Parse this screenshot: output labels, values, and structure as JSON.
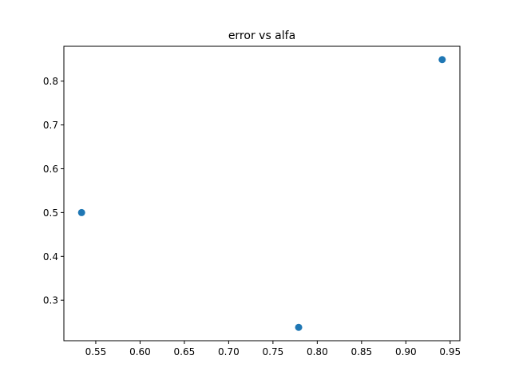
{
  "chart_data": {
    "type": "scatter",
    "title": "error vs alfa",
    "xlabel": "",
    "ylabel": "",
    "x": [
      0.534,
      0.779,
      0.941
    ],
    "y": [
      0.5,
      0.238,
      0.849
    ],
    "xlim": [
      0.514,
      0.961
    ],
    "ylim": [
      0.2075,
      0.8795
    ],
    "xticks": [
      0.55,
      0.6,
      0.65,
      0.7,
      0.75,
      0.8,
      0.85,
      0.9,
      0.95
    ],
    "xtick_labels": [
      "0.55",
      "0.60",
      "0.65",
      "0.70",
      "0.75",
      "0.80",
      "0.85",
      "0.90",
      "0.95"
    ],
    "yticks": [
      0.3,
      0.4,
      0.5,
      0.6,
      0.7,
      0.8
    ],
    "ytick_labels": [
      "0.3",
      "0.4",
      "0.5",
      "0.6",
      "0.7",
      "0.8"
    ],
    "grid": false,
    "marker_color": "#1f77b4"
  }
}
